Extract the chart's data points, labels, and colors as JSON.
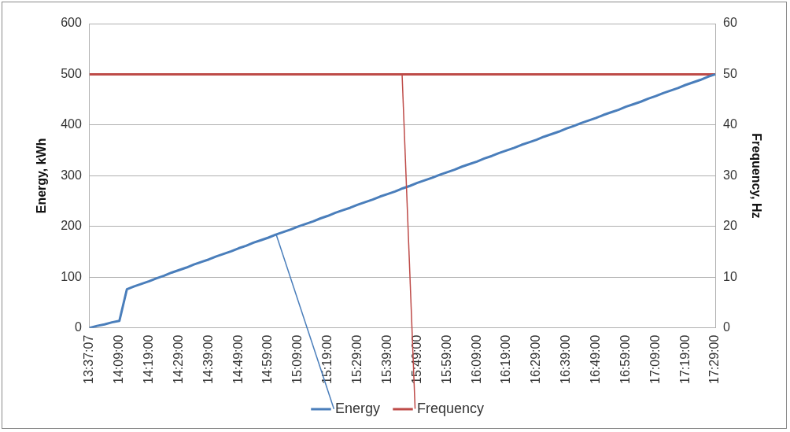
{
  "chart_data": {
    "type": "line",
    "ylabel": "Energy, kWh",
    "y2label": "Frequency, Hz",
    "categories": [
      "13:37:07",
      null,
      null,
      null,
      "14:09:00",
      null,
      null,
      null,
      "14:19:00",
      null,
      null,
      null,
      "14:29:00",
      null,
      null,
      null,
      "14:39:00",
      null,
      null,
      null,
      "14:49:00",
      null,
      null,
      null,
      "14:59:00",
      null,
      null,
      null,
      "15:09:00",
      null,
      null,
      null,
      "15:19:00",
      null,
      null,
      null,
      "15:29:00",
      null,
      null,
      null,
      "15:39:00",
      null,
      null,
      null,
      "15:49:00",
      null,
      null,
      null,
      "15:59:00",
      null,
      null,
      null,
      "16:09:00",
      null,
      null,
      null,
      "16:19:00",
      null,
      null,
      null,
      "16:29:00",
      null,
      null,
      null,
      "16:39:00",
      null,
      null,
      null,
      "16:49:00",
      null,
      null,
      null,
      "16:59:00",
      null,
      null,
      null,
      "17:09:00",
      null,
      null,
      null,
      "17:19:00",
      null,
      null,
      null,
      "17:29:00"
    ],
    "series": [
      {
        "name": "Energy",
        "color": "#4a7ebb",
        "values": [
          0,
          4,
          7,
          11,
          14,
          76,
          82,
          87,
          92,
          98,
          103,
          109,
          114,
          119,
          125,
          130,
          135,
          141,
          146,
          151,
          157,
          162,
          168,
          173,
          178,
          184,
          189,
          194,
          200,
          205,
          210,
          216,
          221,
          227,
          232,
          237,
          243,
          248,
          253,
          259,
          264,
          269,
          275,
          280,
          286,
          291,
          296,
          302,
          307,
          312,
          318,
          323,
          328,
          334,
          339,
          345,
          350,
          355,
          361,
          366,
          371,
          377,
          382,
          387,
          393,
          398,
          404,
          409,
          414,
          420,
          425,
          430,
          436,
          441,
          446,
          452,
          457,
          463,
          468,
          473,
          479,
          484,
          489,
          495,
          500
        ]
      },
      {
        "name": "Frequency",
        "color": "#be4b48",
        "axis": "y2",
        "values": [
          50,
          50,
          50,
          50,
          50,
          50,
          50,
          50,
          50,
          50,
          50,
          50,
          50,
          50,
          50,
          50,
          50,
          50,
          50,
          50,
          50,
          50,
          50,
          50,
          50,
          50,
          50,
          50,
          50,
          50,
          50,
          50,
          50,
          50,
          50,
          50,
          50,
          50,
          50,
          50,
          50,
          50,
          50,
          50,
          50,
          50,
          50,
          50,
          50,
          50,
          50,
          50,
          50,
          50,
          50,
          50,
          50,
          50,
          50,
          50,
          50,
          50,
          50,
          50,
          50,
          50,
          50,
          50,
          50,
          50,
          50,
          50,
          50,
          50,
          50,
          50,
          50,
          50,
          50,
          50,
          50,
          50,
          50,
          50,
          50
        ]
      }
    ],
    "ylim": [
      0,
      600
    ],
    "yticks": [
      0,
      100,
      200,
      300,
      400,
      500,
      600
    ],
    "y2lim": [
      0,
      60
    ],
    "y2ticks": [
      0,
      10,
      20,
      30,
      40,
      50,
      60
    ],
    "grid": "y",
    "legend": "bottom",
    "marker": "none",
    "line_style": "solid"
  }
}
